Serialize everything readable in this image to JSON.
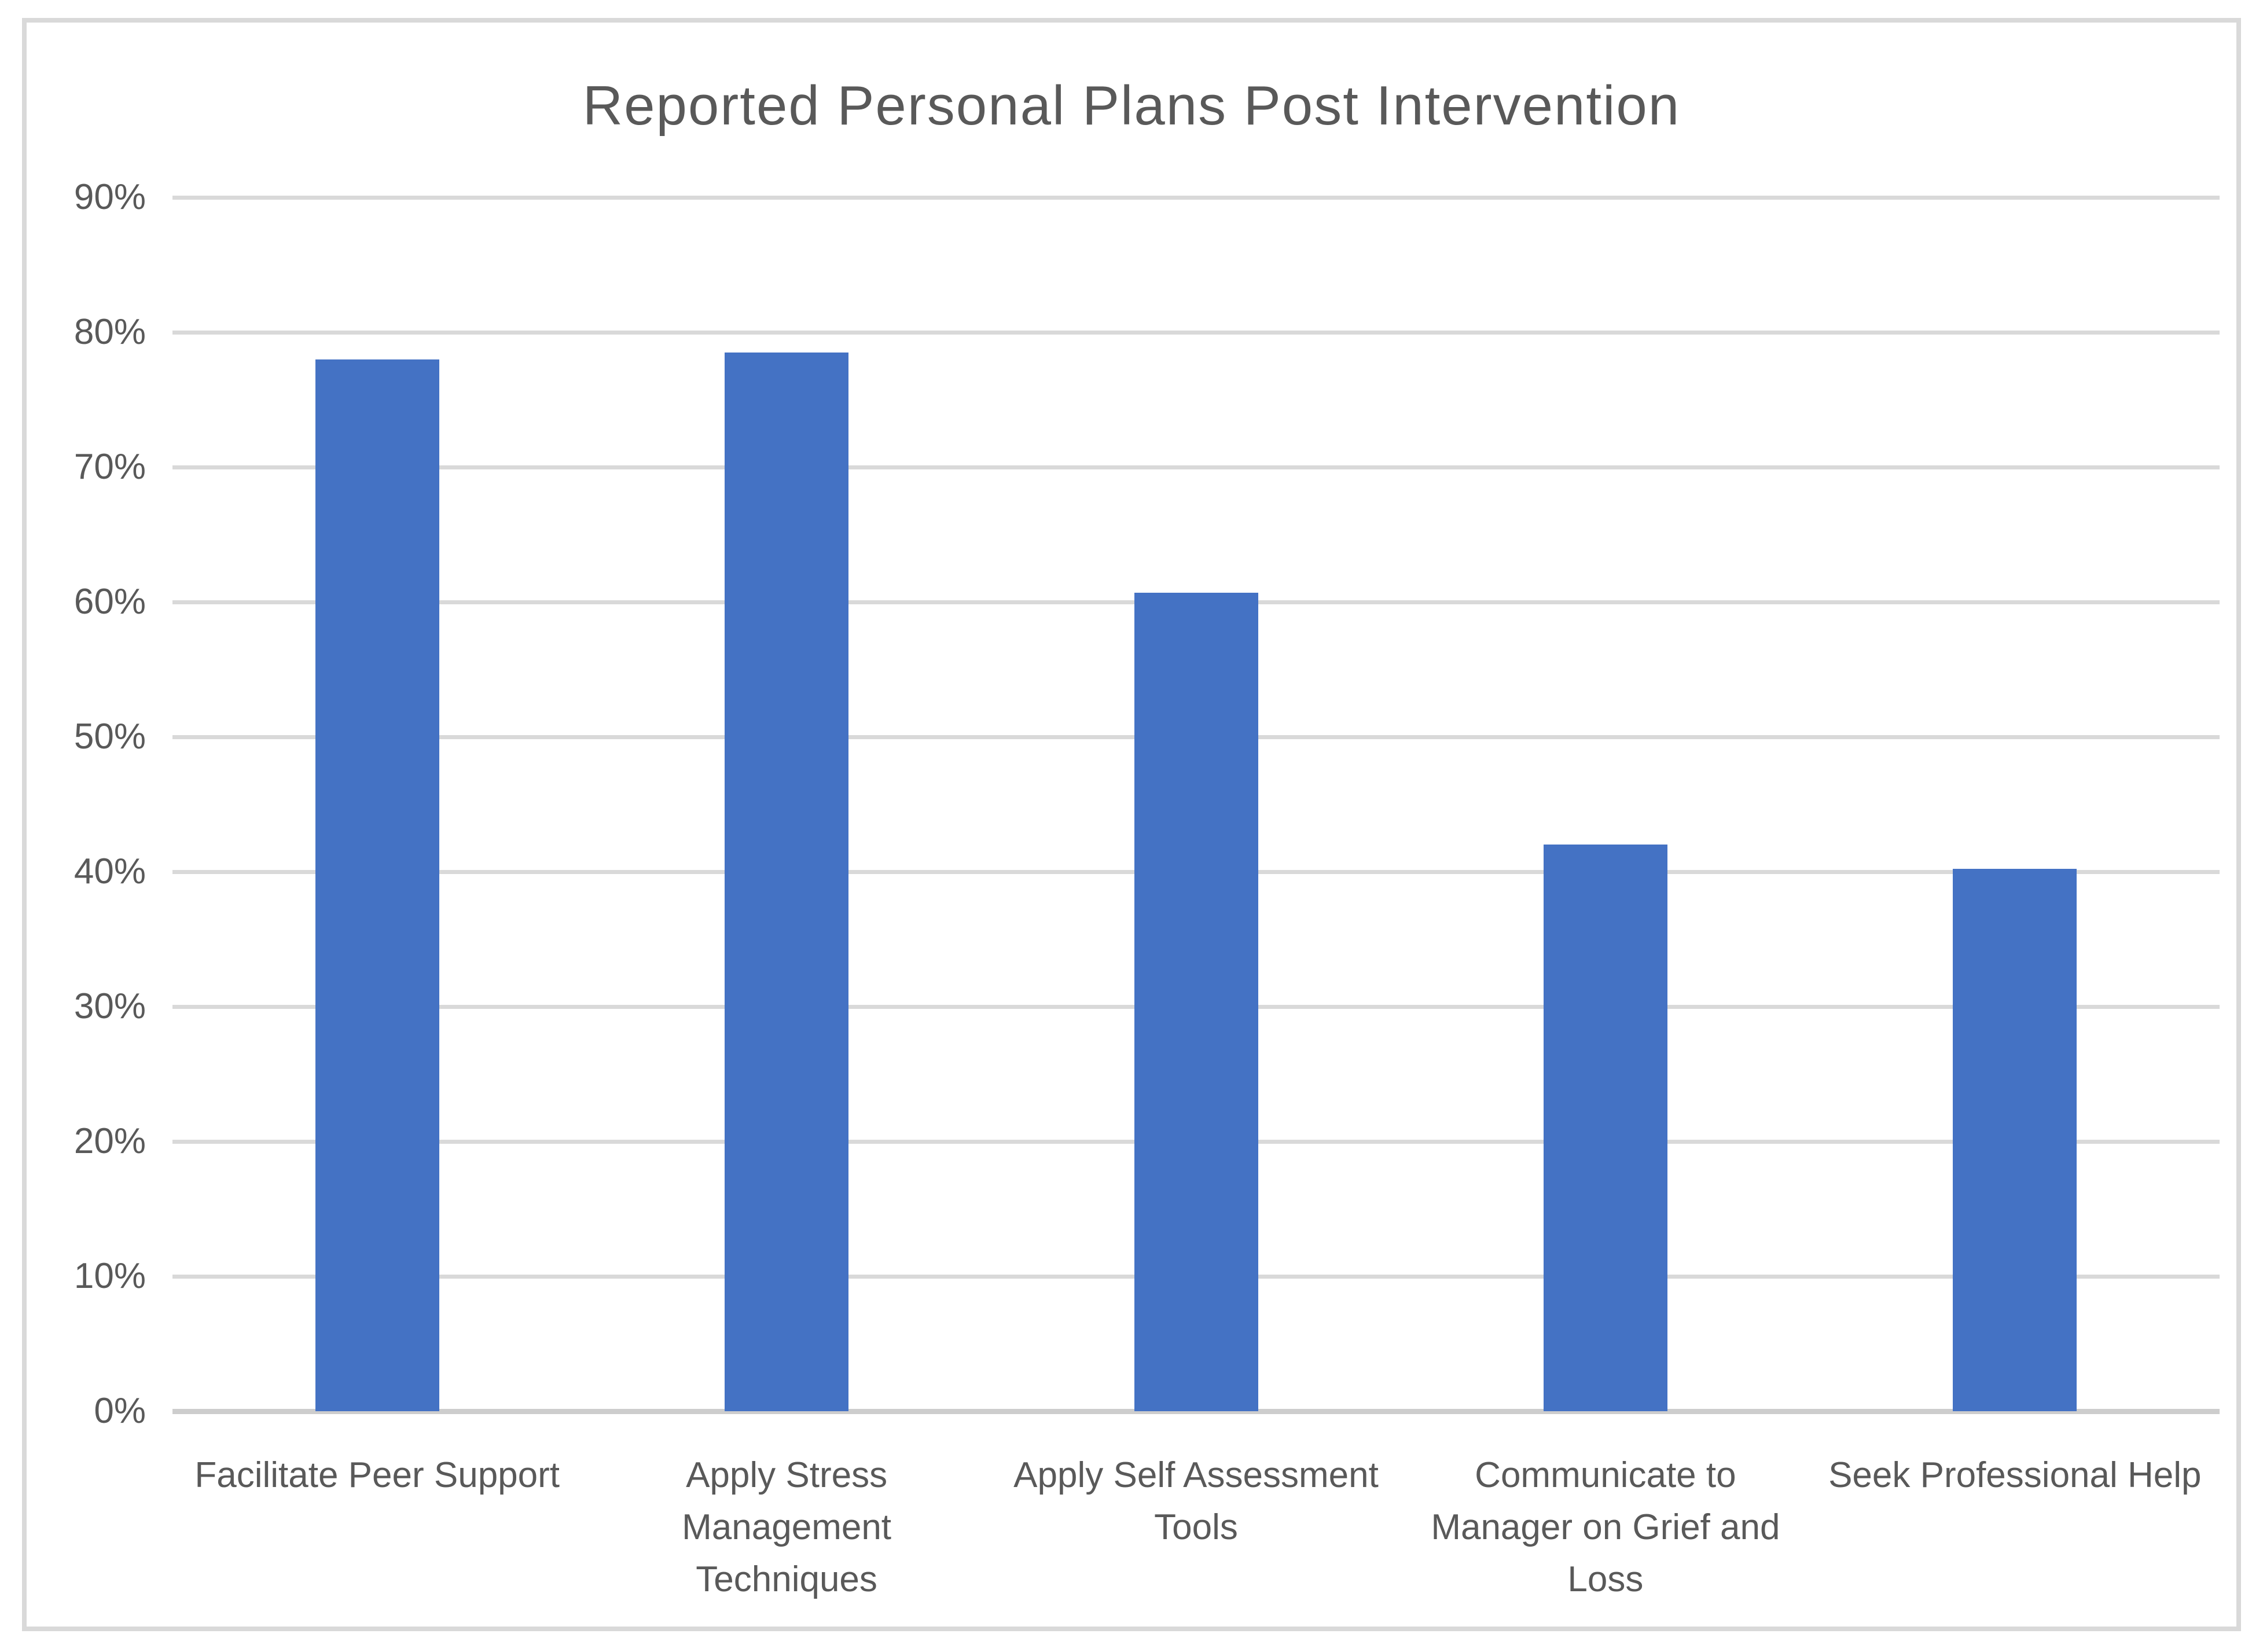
{
  "chart_data": {
    "type": "bar",
    "title": "Reported Personal Plans Post Intervention",
    "categories": [
      "Facilitate Peer Support",
      "Apply Stress\nManagement\nTechniques",
      "Apply Self Assessment\nTools",
      "Communicate to\nManager on Grief and\nLoss",
      "Seek Professional Help"
    ],
    "values": [
      78,
      78.5,
      60.7,
      42,
      40.2
    ],
    "value_unit": "percent",
    "xlabel": "",
    "ylabel": "",
    "ylim": [
      0,
      90
    ],
    "ytick_step": 10,
    "ytick_labels": [
      "0%",
      "10%",
      "20%",
      "30%",
      "40%",
      "50%",
      "60%",
      "70%",
      "80%",
      "90%"
    ],
    "grid": true,
    "legend": "none"
  },
  "colors": {
    "bar": "#4472C4",
    "gridline": "#D9D9D9",
    "axis_line": "#CDCDCD",
    "title_text": "#595959",
    "tick_text": "#595959",
    "frame_border": "#D9D9D9",
    "background": "#FFFFFF"
  }
}
